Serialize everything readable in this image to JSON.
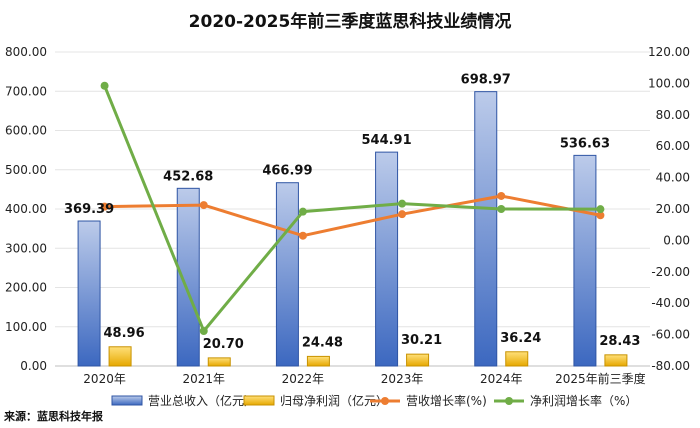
{
  "chart_data": {
    "type": "bar",
    "title": "2020-2025年前三季度蓝思科技业绩情况",
    "categories": [
      "2020年",
      "2021年",
      "2022年",
      "2023年",
      "2024年",
      "2025年前三季度"
    ],
    "y_left": {
      "min": 0,
      "max": 800,
      "step": 100,
      "ticks": [
        "0.00",
        "100.00",
        "200.00",
        "300.00",
        "400.00",
        "500.00",
        "600.00",
        "700.00",
        "800.00"
      ]
    },
    "y_right": {
      "min": -80,
      "max": 120,
      "step": 20,
      "ticks": [
        "-80.00",
        "-60.00",
        "-40.00",
        "-20.00",
        "0.00",
        "20.00",
        "40.00",
        "60.00",
        "80.00",
        "100.00",
        "120.00"
      ]
    },
    "series": [
      {
        "name": "营业总收入（亿元）",
        "type": "bar",
        "axis": "left",
        "color": "#4472c4",
        "values": [
          369.39,
          452.68,
          466.99,
          544.91,
          698.97,
          536.63
        ],
        "labels": [
          "369.39",
          "452.68",
          "466.99",
          "544.91",
          "698.97",
          "536.63"
        ]
      },
      {
        "name": "归母净利润（亿元）",
        "type": "bar",
        "axis": "left",
        "color": "#ffc000",
        "values": [
          48.96,
          20.7,
          24.48,
          30.21,
          36.24,
          28.43
        ],
        "labels": [
          "48.96",
          "20.70",
          "24.48",
          "30.21",
          "36.24",
          "28.43"
        ]
      },
      {
        "name": "营收增长率(%)",
        "type": "line",
        "axis": "right",
        "color": "#ed7d31",
        "values": [
          21.5,
          22.5,
          3.0,
          16.7,
          28.3,
          16.0
        ]
      },
      {
        "name": "净利润增长率（%）",
        "type": "line",
        "axis": "right",
        "color": "#70ad47",
        "values": [
          98.5,
          -57.7,
          18.3,
          23.4,
          20.0,
          19.9
        ]
      }
    ],
    "legend_position": "bottom"
  },
  "source": "来源：蓝思科技年报"
}
